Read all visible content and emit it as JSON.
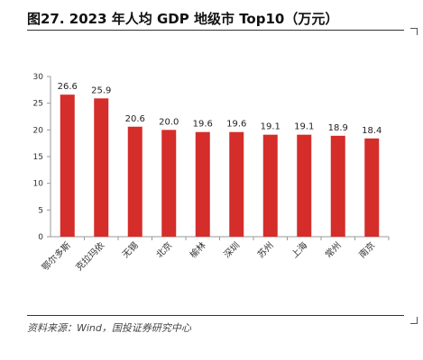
{
  "header": {
    "title": "图27. 2023 年人均 GDP 地级市 Top10（万元）"
  },
  "footer": {
    "source": "资料来源：Wind，国投证券研究中心"
  },
  "colors": {
    "bar": "#d42d2a",
    "axis": "#999999",
    "rule": "#333333"
  },
  "chart_data": {
    "type": "bar",
    "title": "2023 年人均 GDP 地级市 Top10（万元）",
    "categories": [
      "鄂尔多斯",
      "克拉玛依",
      "无锡",
      "北京",
      "榆林",
      "深圳",
      "苏州",
      "上海",
      "常州",
      "南京"
    ],
    "values": [
      26.6,
      25.9,
      20.6,
      20.0,
      19.6,
      19.6,
      19.1,
      19.1,
      18.9,
      18.4
    ],
    "value_labels": [
      "26.6",
      "25.9",
      "20.6",
      "20.0",
      "19.6",
      "19.6",
      "19.1",
      "19.1",
      "18.9",
      "18.4"
    ],
    "ylim": [
      0,
      30
    ],
    "yticks": [
      0,
      5,
      10,
      15,
      20,
      25,
      30
    ],
    "xlabel": "",
    "ylabel": "",
    "grid": false,
    "legend": "none"
  }
}
